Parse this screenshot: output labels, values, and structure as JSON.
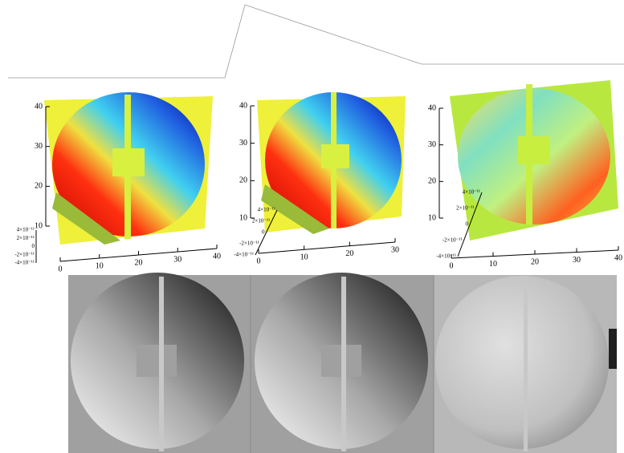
{
  "panels": [
    {
      "y_ticks": [
        "10",
        "20",
        "30",
        "40"
      ],
      "x_ticks": [
        "0",
        "10",
        "20",
        "30",
        "40"
      ],
      "z_ticks": [
        "-4×10⁻¹¹",
        "-2×10⁻¹¹",
        "0",
        "2×10⁻¹¹",
        "4×10⁻¹¹"
      ]
    },
    {
      "y_ticks": [
        "10",
        "20",
        "30",
        "40"
      ],
      "x_ticks": [
        "0",
        "10",
        "20",
        "30"
      ],
      "z_ticks": [
        "-4×10⁻¹¹",
        "-2×10⁻¹¹",
        "0",
        "2×10⁻¹¹",
        "4×10⁻¹¹"
      ]
    },
    {
      "y_ticks": [
        "10",
        "20",
        "30",
        "40"
      ],
      "x_ticks": [
        "0",
        "10",
        "20",
        "30",
        "40"
      ],
      "z_ticks": [
        "-4×10⁻¹¹",
        "-2×10⁻¹¹",
        "0",
        "2×10⁻¹¹",
        "4×10⁻¹¹"
      ]
    }
  ]
}
